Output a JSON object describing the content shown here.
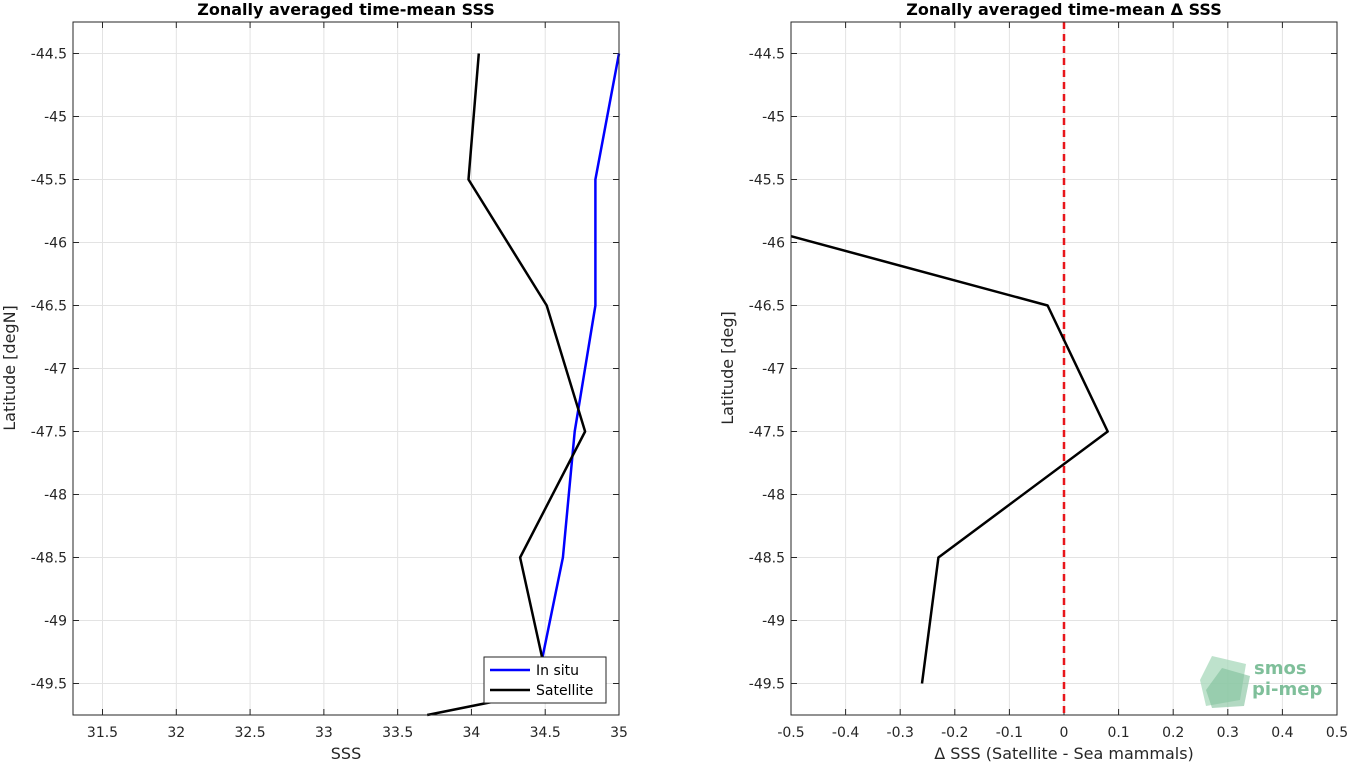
{
  "chart_data": [
    {
      "type": "line",
      "title": "Zonally averaged time-mean SSS",
      "xlabel": "SSS",
      "ylabel": "Latitude [degN]",
      "xlim": [
        31.3,
        35
      ],
      "ylim": [
        -49.75,
        -44.25
      ],
      "xticks": [
        "31.5",
        "32",
        "32.5",
        "33",
        "33.5",
        "34",
        "34.5",
        "35"
      ],
      "xtick_values": [
        31.5,
        32,
        32.5,
        33,
        33.5,
        34,
        34.5,
        35
      ],
      "yticks": [
        "-44.5",
        "-45",
        "-45.5",
        "-46",
        "-46.5",
        "-47",
        "-47.5",
        "-48",
        "-48.5",
        "-49",
        "-49.5"
      ],
      "ytick_values": [
        -44.5,
        -45,
        -45.5,
        -46,
        -46.5,
        -47,
        -47.5,
        -48,
        -48.5,
        -49,
        -49.5
      ],
      "grid": true,
      "legend_position": "bottom-right",
      "series": [
        {
          "name": "In situ",
          "color": "#0000ff",
          "points": [
            [
              35.0,
              -44.5
            ],
            [
              34.84,
              -45.5
            ],
            [
              34.84,
              -46.0
            ],
            [
              34.84,
              -46.5
            ],
            [
              34.7,
              -47.5
            ],
            [
              34.62,
              -48.5
            ],
            [
              34.48,
              -49.3
            ]
          ]
        },
        {
          "name": "Satellite",
          "color": "#000000",
          "points": [
            [
              34.05,
              -44.5
            ],
            [
              33.98,
              -45.5
            ],
            [
              34.51,
              -46.5
            ],
            [
              34.77,
              -47.5
            ],
            [
              34.33,
              -48.5
            ],
            [
              34.48,
              -49.3
            ],
            [
              34.55,
              -49.55
            ],
            [
              33.7,
              -49.75
            ]
          ]
        }
      ]
    },
    {
      "type": "line",
      "title": "Zonally averaged time-mean Δ SSS",
      "xlabel": "Δ SSS (Satellite - Sea mammals)",
      "ylabel": "Latitude [deg]",
      "xlim": [
        -0.5,
        0.5
      ],
      "ylim": [
        -49.75,
        -44.25
      ],
      "xticks": [
        "-0.5",
        "-0.4",
        "-0.3",
        "-0.2",
        "-0.1",
        "0",
        "0.1",
        "0.2",
        "0.3",
        "0.4",
        "0.5"
      ],
      "xtick_values": [
        -0.5,
        -0.4,
        -0.3,
        -0.2,
        -0.1,
        0,
        0.1,
        0.2,
        0.3,
        0.4,
        0.5
      ],
      "yticks": [
        "-44.5",
        "-45",
        "-45.5",
        "-46",
        "-46.5",
        "-47",
        "-47.5",
        "-48",
        "-48.5",
        "-49",
        "-49.5"
      ],
      "ytick_values": [
        -44.5,
        -45,
        -45.5,
        -46,
        -46.5,
        -47,
        -47.5,
        -48,
        -48.5,
        -49,
        -49.5
      ],
      "grid": true,
      "reference_line": {
        "x": 0,
        "color": "#e8161b",
        "style": "dashed"
      },
      "series": [
        {
          "name": "",
          "color": "#000000",
          "points": [
            [
              -0.5,
              -45.95
            ],
            [
              -0.03,
              -46.5
            ],
            [
              0.08,
              -47.5
            ],
            [
              -0.23,
              -48.5
            ],
            [
              -0.26,
              -49.5
            ]
          ]
        }
      ]
    }
  ],
  "logo": {
    "line1": "smos",
    "line2": "pi-mep",
    "color": "#7fbf9a"
  }
}
